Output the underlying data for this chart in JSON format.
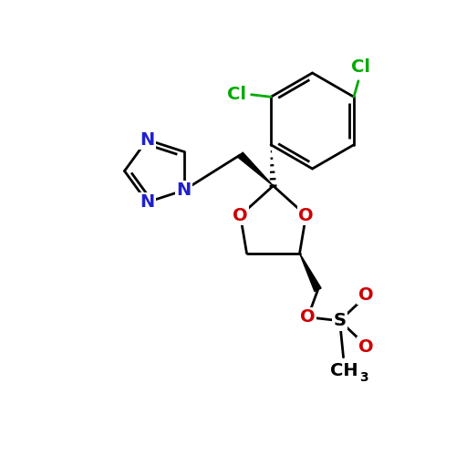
{
  "bg": "#ffffff",
  "bc": "#000000",
  "nc": "#2020cc",
  "oc": "#cc0000",
  "clc": "#00aa00",
  "lw": 2.0,
  "fs": 14,
  "fs_sub": 10,
  "xlim": [
    0,
    10
  ],
  "ylim": [
    0,
    10
  ]
}
